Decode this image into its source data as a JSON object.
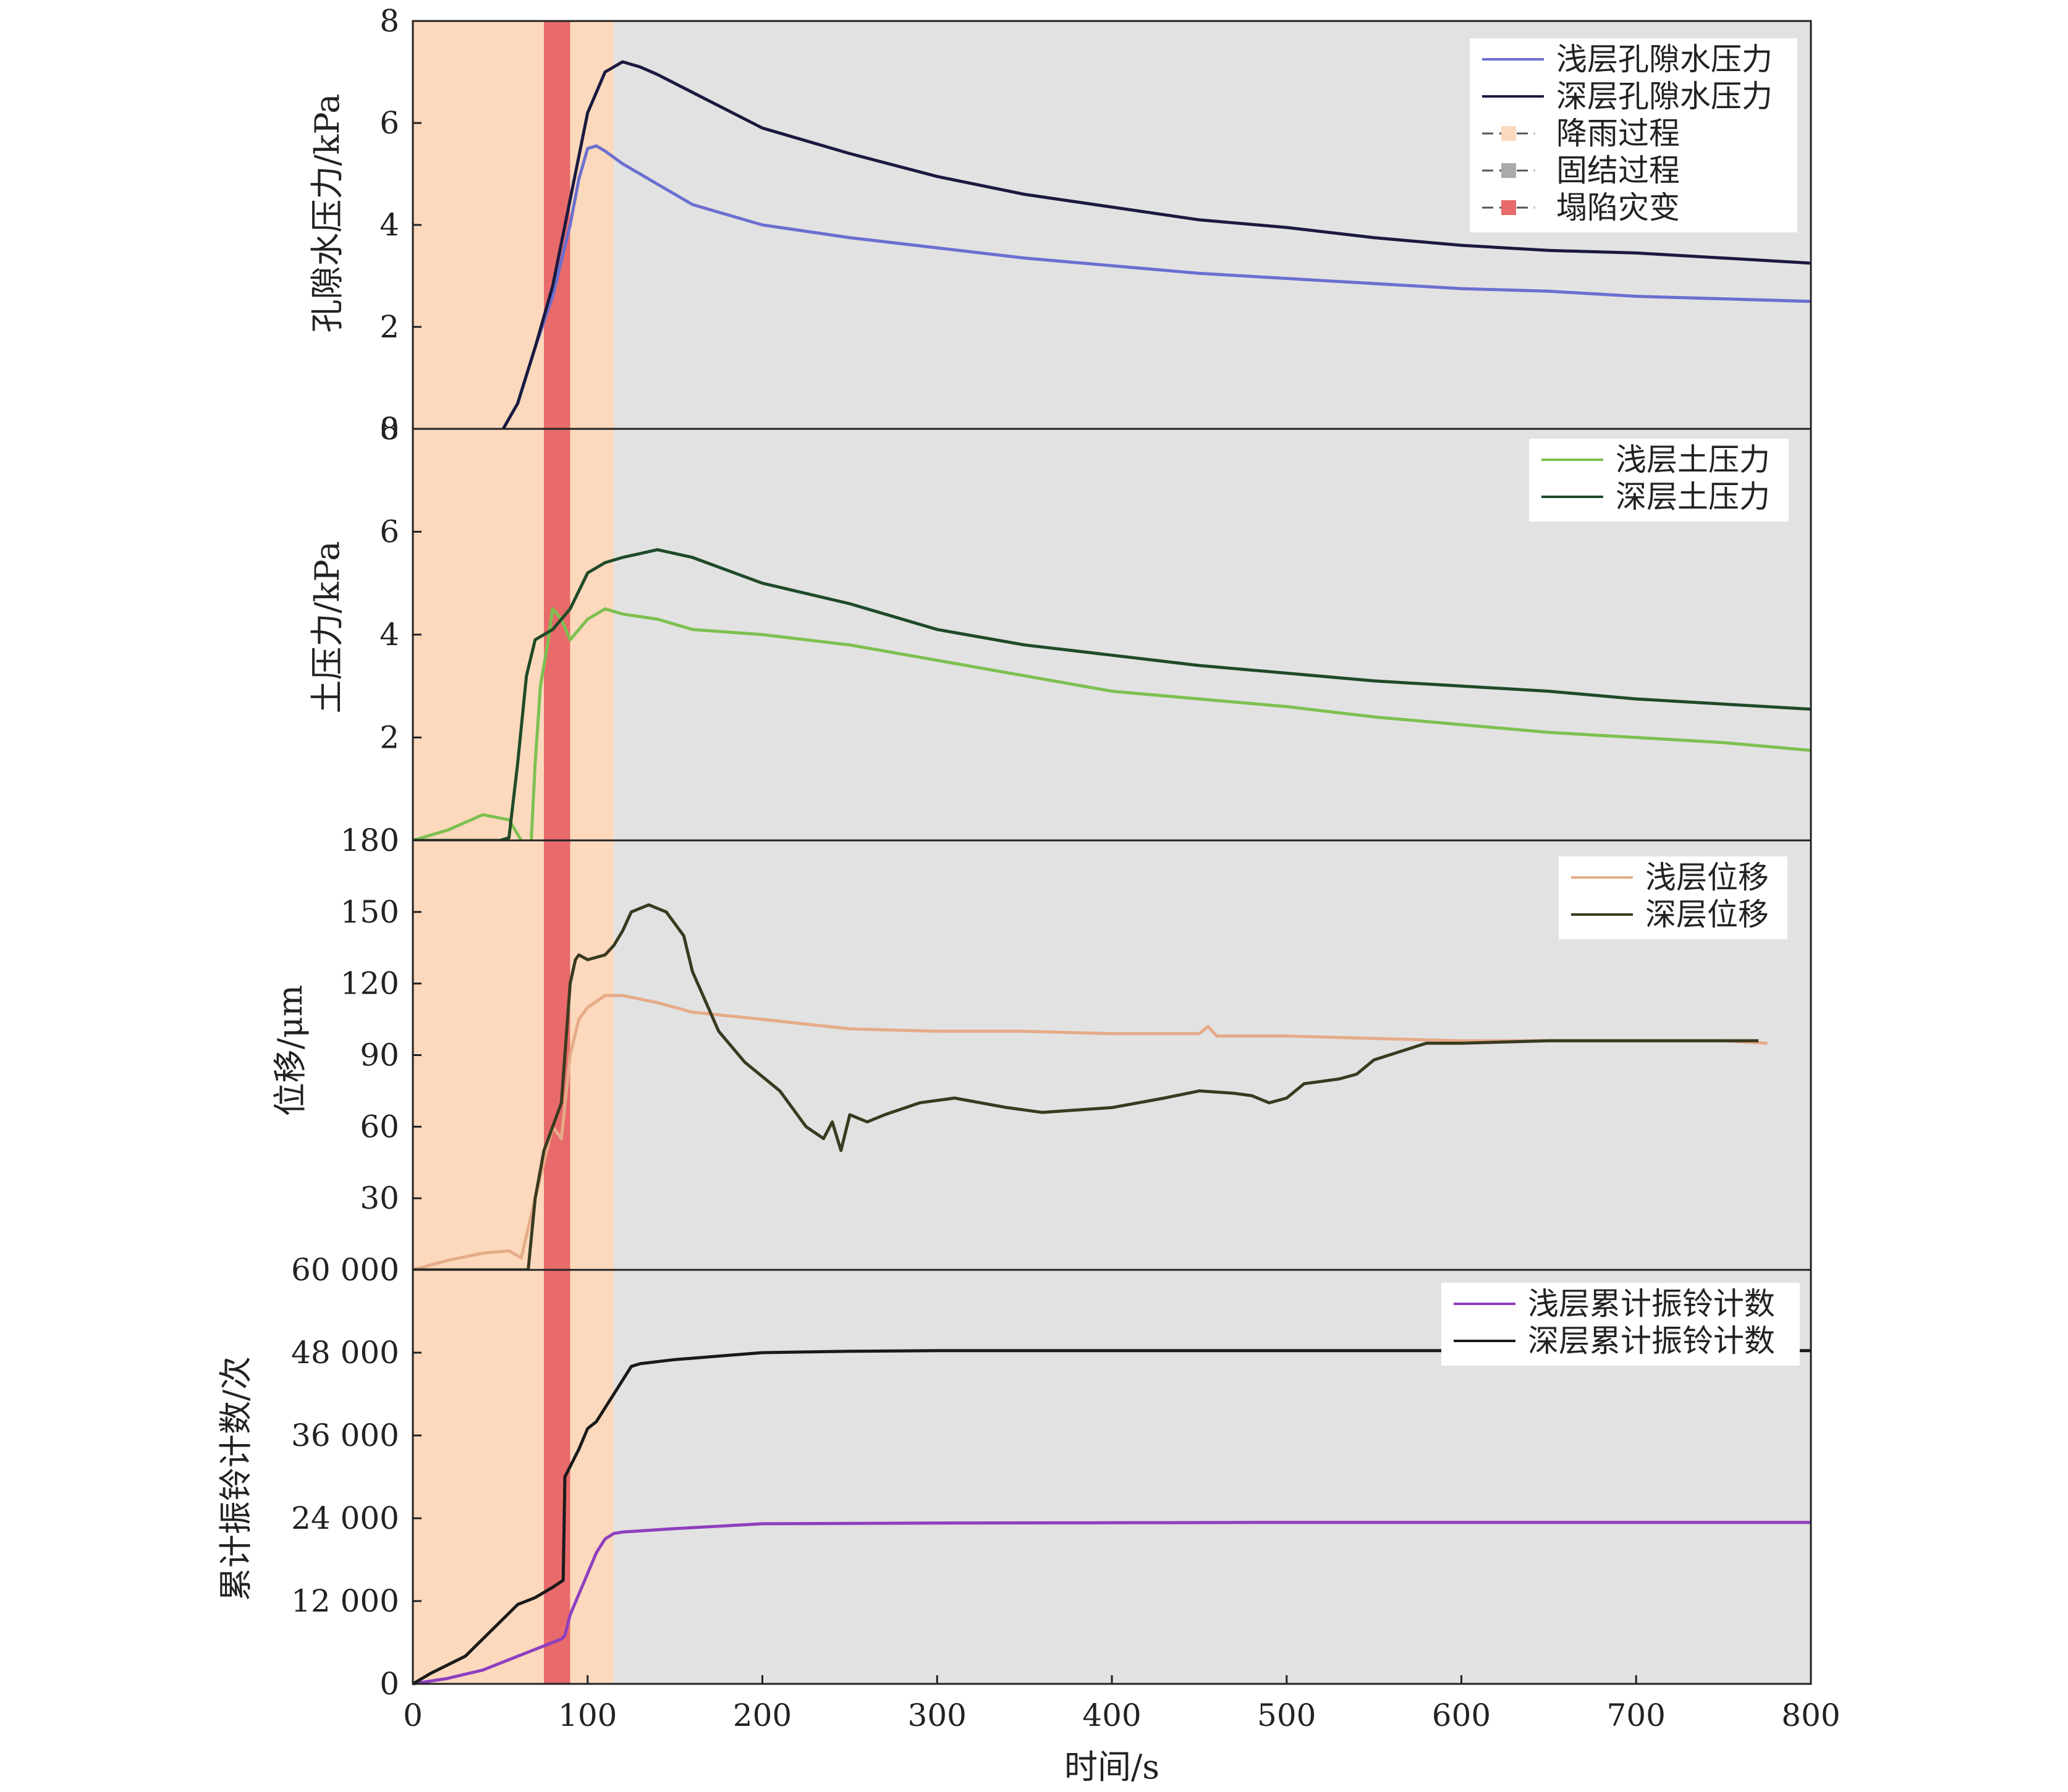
{
  "figure": {
    "xlabel": "时间/s",
    "xlim": [
      0,
      800
    ],
    "xticks": [
      0,
      100,
      200,
      300,
      400,
      500,
      600,
      700,
      800
    ]
  },
  "colors": {
    "rain_bg": "#fcd9bd",
    "consolidation_bg": "#e2e2e2",
    "collapse_band": "#e86a6a",
    "shallow_pore": "#6b6fd0",
    "deep_pore": "#1a1a40",
    "shallow_earth": "#7dc050",
    "deep_earth": "#1f4a28",
    "shallow_disp": "#e6ab88",
    "deep_disp": "#3a3a20",
    "shallow_ring": "#8e3fc0",
    "deep_ring": "#1a1a1a"
  },
  "chart_data": [
    {
      "type": "line",
      "ylabel": "孔隙水压力/kPa",
      "ylim": [
        0,
        8
      ],
      "yticks": [
        0,
        2,
        4,
        6,
        8
      ],
      "ytick_labels": [
        "0",
        "2",
        "4",
        "6",
        "8"
      ],
      "phases": [
        {
          "name": "降雨过程",
          "x0": 0,
          "x1": 115
        },
        {
          "name": "固结过程",
          "x0": 115,
          "x1": 800
        },
        {
          "name": "塌陷灾变",
          "x0": 75,
          "x1": 90
        }
      ],
      "legend": [
        "浅层孔隙水压力",
        "深层孔隙水压力",
        "降雨过程",
        "固结过程",
        "塌陷灾变"
      ],
      "series": [
        {
          "name": "浅层孔隙水压力",
          "x": [
            0,
            50,
            60,
            70,
            80,
            90,
            95,
            100,
            105,
            110,
            120,
            140,
            160,
            200,
            250,
            300,
            350,
            400,
            450,
            500,
            550,
            600,
            650,
            700,
            750,
            800
          ],
          "y": [
            -0.1,
            -0.1,
            0.5,
            1.6,
            2.6,
            4.0,
            4.9,
            5.5,
            5.55,
            5.45,
            5.2,
            4.8,
            4.4,
            4.0,
            3.75,
            3.55,
            3.35,
            3.2,
            3.05,
            2.95,
            2.85,
            2.75,
            2.7,
            2.6,
            2.55,
            2.5
          ]
        },
        {
          "name": "深层孔隙水压力",
          "x": [
            0,
            50,
            60,
            70,
            80,
            90,
            100,
            110,
            120,
            130,
            140,
            160,
            200,
            250,
            300,
            350,
            400,
            450,
            500,
            550,
            600,
            650,
            700,
            750,
            800
          ],
          "y": [
            -0.1,
            -0.1,
            0.5,
            1.6,
            2.8,
            4.5,
            6.2,
            7.0,
            7.2,
            7.1,
            6.95,
            6.6,
            5.9,
            5.4,
            4.95,
            4.6,
            4.35,
            4.1,
            3.95,
            3.75,
            3.6,
            3.5,
            3.45,
            3.35,
            3.25
          ]
        }
      ]
    },
    {
      "type": "line",
      "ylabel": "土压力/kPa",
      "ylim": [
        0,
        8
      ],
      "yticks": [
        0,
        2,
        4,
        6,
        8
      ],
      "ytick_labels": [
        "0",
        "2",
        "4",
        "6",
        "8"
      ],
      "legend": [
        "浅层土压力",
        "深层土压力"
      ],
      "series": [
        {
          "name": "浅层土压力",
          "x": [
            0,
            20,
            40,
            55,
            62,
            67,
            70,
            73,
            77,
            80,
            85,
            90,
            95,
            100,
            110,
            120,
            140,
            160,
            200,
            250,
            300,
            350,
            400,
            450,
            500,
            550,
            600,
            650,
            700,
            750,
            800
          ],
          "y": [
            0.0,
            0.2,
            0.5,
            0.4,
            0.0,
            -0.5,
            1.5,
            3.0,
            3.8,
            4.5,
            4.3,
            3.9,
            4.1,
            4.3,
            4.5,
            4.4,
            4.3,
            4.1,
            4.0,
            3.8,
            3.5,
            3.2,
            2.9,
            2.75,
            2.6,
            2.4,
            2.25,
            2.1,
            2.0,
            1.9,
            1.75
          ]
        },
        {
          "name": "深层土压力",
          "x": [
            0,
            50,
            55,
            60,
            65,
            70,
            75,
            80,
            90,
            100,
            110,
            120,
            140,
            160,
            200,
            250,
            300,
            350,
            400,
            450,
            500,
            550,
            600,
            650,
            700,
            750,
            800
          ],
          "y": [
            0.0,
            0.0,
            0.05,
            1.5,
            3.2,
            3.9,
            4.0,
            4.1,
            4.5,
            5.2,
            5.4,
            5.5,
            5.65,
            5.5,
            5.0,
            4.6,
            4.1,
            3.8,
            3.6,
            3.4,
            3.25,
            3.1,
            3.0,
            2.9,
            2.75,
            2.65,
            2.55
          ]
        }
      ]
    },
    {
      "type": "line",
      "ylabel": "位移/μm",
      "ylim": [
        0,
        180
      ],
      "yticks": [
        0,
        30,
        60,
        90,
        120,
        150,
        180
      ],
      "ytick_labels": [
        "0",
        "30",
        "60",
        "90",
        "120",
        "150",
        "180"
      ],
      "legend": [
        "浅层位移",
        "深层位移"
      ],
      "series": [
        {
          "name": "浅层位移",
          "x": [
            0,
            20,
            40,
            55,
            62,
            70,
            80,
            85,
            90,
            95,
            100,
            110,
            120,
            140,
            160,
            200,
            250,
            300,
            350,
            400,
            450,
            455,
            460,
            500,
            550,
            600,
            650,
            700,
            750,
            775
          ],
          "y": [
            0,
            4,
            7,
            8,
            5,
            30,
            60,
            55,
            90,
            105,
            110,
            115,
            115,
            112,
            108,
            105,
            101,
            100,
            100,
            99,
            99,
            102,
            98,
            98,
            97,
            96,
            96,
            96,
            96,
            95
          ]
        },
        {
          "name": "深层位移",
          "x": [
            0,
            60,
            66,
            70,
            75,
            80,
            85,
            90,
            93,
            95,
            100,
            110,
            115,
            120,
            125,
            135,
            145,
            155,
            160,
            175,
            190,
            210,
            225,
            235,
            240,
            245,
            250,
            260,
            270,
            290,
            310,
            340,
            360,
            400,
            430,
            450,
            470,
            480,
            490,
            500,
            510,
            530,
            540,
            550,
            580,
            600,
            650,
            700,
            750,
            770
          ],
          "y": [
            0,
            0,
            0,
            30,
            50,
            60,
            70,
            120,
            130,
            132,
            130,
            132,
            136,
            142,
            150,
            153,
            150,
            140,
            125,
            100,
            87,
            75,
            60,
            55,
            62,
            50,
            65,
            62,
            65,
            70,
            72,
            68,
            66,
            68,
            72,
            75,
            74,
            73,
            70,
            72,
            78,
            80,
            82,
            88,
            95,
            95,
            96,
            96,
            96,
            96
          ]
        }
      ]
    },
    {
      "type": "line",
      "ylabel": "累计振铃计数/次",
      "ylim": [
        0,
        60000
      ],
      "yticks": [
        0,
        12000,
        24000,
        36000,
        48000,
        60000
      ],
      "ytick_labels": [
        "0",
        "12 000",
        "24 000",
        "36 000",
        "48 000",
        "60 000"
      ],
      "legend": [
        "浅层累计振铃计数",
        "深层累计振铃计数"
      ],
      "series": [
        {
          "name": "浅层累计振铃计数",
          "x": [
            0,
            20,
            40,
            60,
            70,
            80,
            85,
            87,
            90,
            95,
            100,
            105,
            110,
            115,
            120,
            150,
            200,
            300,
            400,
            500,
            600,
            700,
            800
          ],
          "y": [
            0,
            800,
            2000,
            4000,
            5000,
            6000,
            6500,
            7000,
            10000,
            13000,
            16000,
            19000,
            21000,
            21800,
            22000,
            22500,
            23200,
            23300,
            23350,
            23400,
            23400,
            23400,
            23400
          ]
        },
        {
          "name": "深层累计振铃计数",
          "x": [
            0,
            10,
            30,
            50,
            60,
            70,
            80,
            86,
            87,
            90,
            95,
            100,
            105,
            110,
            115,
            120,
            125,
            130,
            150,
            200,
            250,
            300,
            400,
            500,
            600,
            700,
            800
          ],
          "y": [
            0,
            1500,
            4000,
            9000,
            11500,
            12500,
            14000,
            15000,
            30000,
            31500,
            34000,
            37000,
            38000,
            40000,
            42000,
            44000,
            46000,
            46400,
            47000,
            48000,
            48200,
            48300,
            48300,
            48300,
            48300,
            48300,
            48300
          ]
        }
      ]
    }
  ]
}
